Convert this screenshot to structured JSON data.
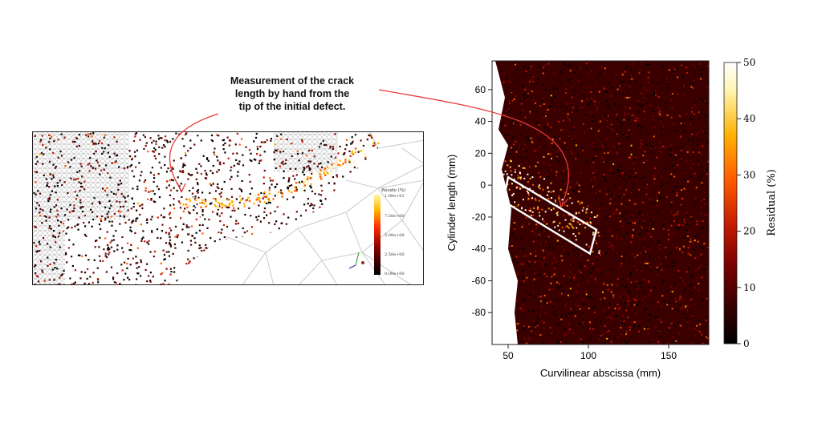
{
  "annotation": {
    "lines": [
      "Measurement of the crack",
      "length by hand from the",
      "tip of the initial defect."
    ]
  },
  "left_panel": {
    "colorbar_title": "Résidu (%)",
    "colorbar_ticks": [
      "1.00e+01",
      "7.50e+00",
      "5.00e+00",
      "2.50e+00",
      "0.00e+00"
    ]
  },
  "chart_data": {
    "type": "heatmap",
    "xlabel": "Curvilinear abscissa (mm)",
    "ylabel": "Cylinder length (mm)",
    "xlim": [
      40,
      175
    ],
    "ylim": [
      -100,
      78
    ],
    "xticks": [
      50,
      100,
      150
    ],
    "yticks": [
      60,
      40,
      20,
      0,
      -20,
      -40,
      -60,
      -80
    ],
    "colorbar": {
      "label": "Residual (%)",
      "range": [
        0,
        50
      ],
      "ticks": [
        50,
        40,
        30,
        20,
        10,
        0
      ],
      "colormap": [
        "#000000",
        "#3a0000",
        "#7a0000",
        "#c41a00",
        "#ff5a00",
        "#ffb000",
        "#fff5b0",
        "#ffffff"
      ]
    },
    "crack_measurement_box": [
      [
        50,
        5
      ],
      [
        105,
        -28
      ],
      [
        101,
        -43
      ],
      [
        47,
        -10
      ]
    ],
    "domain_left_boundary": [
      [
        42,
        78
      ],
      [
        48,
        55
      ],
      [
        44,
        35
      ],
      [
        50,
        25
      ],
      [
        46,
        10
      ],
      [
        52,
        -15
      ],
      [
        50,
        -40
      ],
      [
        56,
        -60
      ],
      [
        54,
        -80
      ],
      [
        56,
        -100
      ]
    ]
  }
}
